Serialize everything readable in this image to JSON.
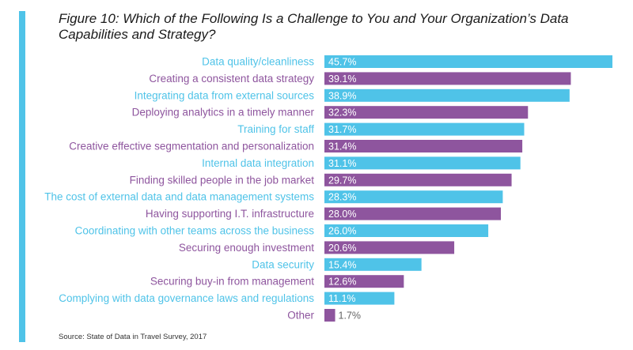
{
  "title": "Figure 10: Which of the Following Is a Challenge to You and Your Organization’s Data Capabilities and Strategy?",
  "source": "Source: State of Data in Travel Survey, 2017",
  "colors": {
    "cyan": "#4fc3e8",
    "purple": "#8e559e",
    "accent": "#4fc3e8"
  },
  "chart_data": {
    "type": "bar",
    "orientation": "horizontal",
    "title": "Figure 10: Which of the Following Is a Challenge to You and Your Organization’s Data Capabilities and Strategy?",
    "categories": [
      "Data quality/cleanliness",
      "Creating a consistent data strategy",
      "Integrating data from external sources",
      "Deploying analytics in a timely manner",
      "Training for staff",
      "Creative effective segmentation and personalization",
      "Internal data integration",
      "Finding skilled people in the job market",
      "The cost of external data and data management systems",
      "Having supporting I.T. infrastructure",
      "Coordinating with other teams across the business",
      "Securing enough investment",
      "Data security",
      "Securing buy-in from management",
      "Complying with data governance laws and regulations",
      "Other"
    ],
    "values": [
      45.7,
      39.1,
      38.9,
      32.3,
      31.7,
      31.4,
      31.1,
      29.7,
      28.3,
      28.0,
      26.0,
      20.6,
      15.4,
      12.6,
      11.1,
      1.7
    ],
    "value_labels": [
      "45.7%",
      "39.1%",
      "38.9%",
      "32.3%",
      "31.7%",
      "31.4%",
      "31.1%",
      "29.7%",
      "28.3%",
      "28.0%",
      "26.0%",
      "20.6%",
      "15.4%",
      "12.6%",
      "11.1%",
      "1.7%"
    ],
    "color_pattern": [
      "cyan",
      "purple"
    ],
    "xlim": [
      0,
      45.7
    ],
    "grid": false,
    "legend": "none"
  }
}
